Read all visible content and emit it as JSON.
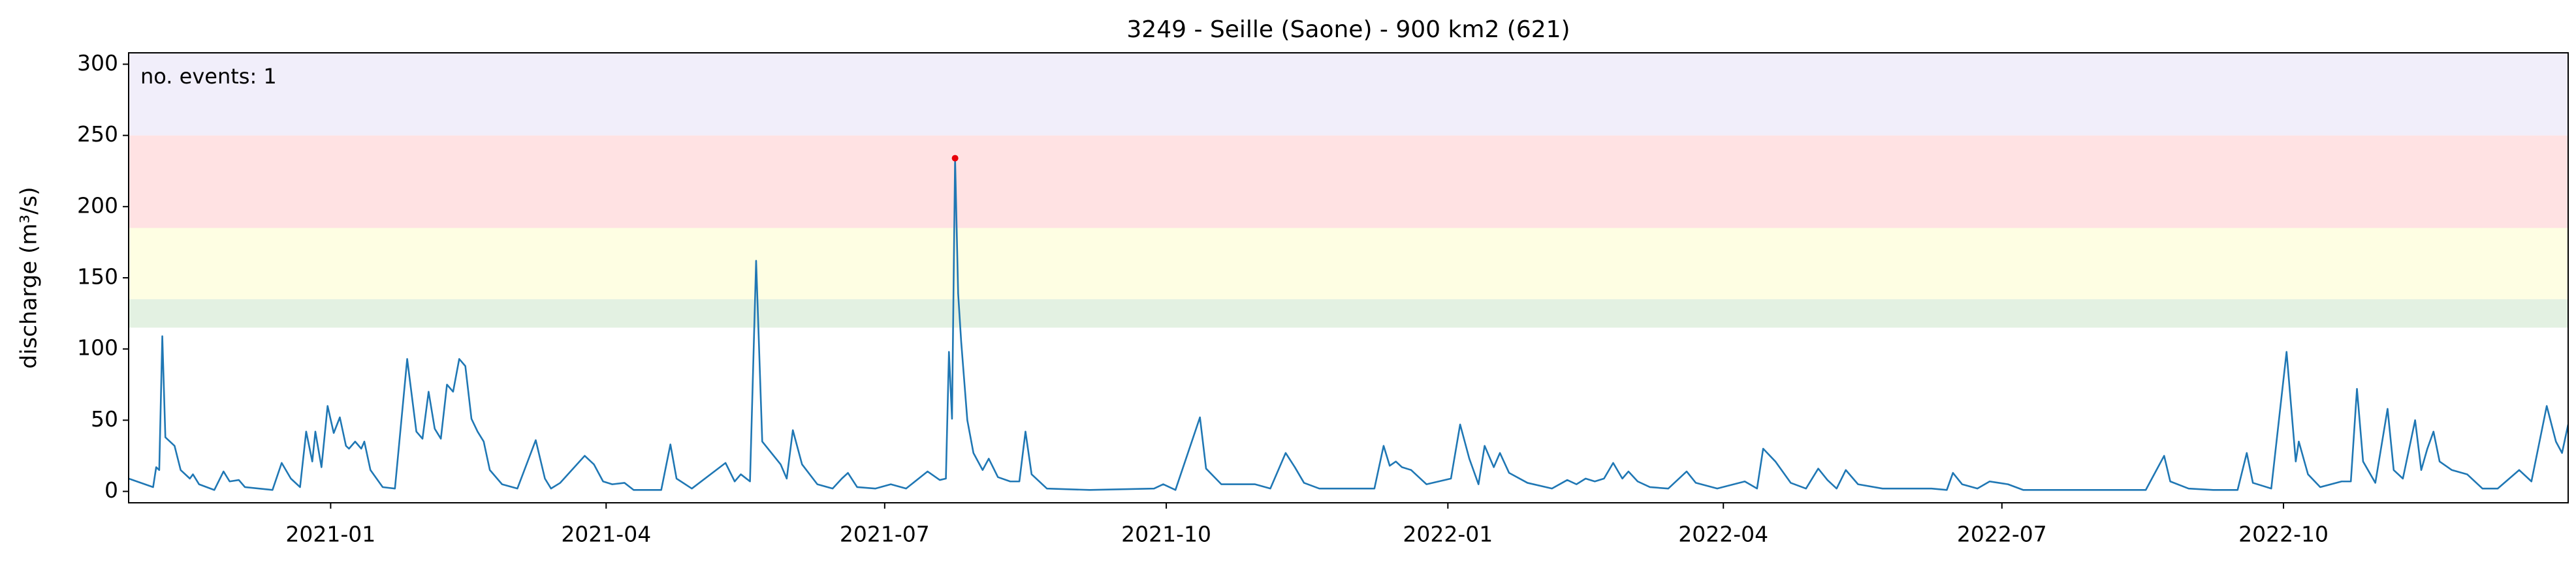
{
  "chart_data": {
    "type": "line",
    "title": "3249 - Seille (Saone) - 900 km2 (621)",
    "ylabel": "discharge (m³/s)",
    "annotation": "no. events: 1",
    "annotation_color": "#e8000b",
    "xlim": [
      -66,
      731
    ],
    "ylim": [
      -8,
      308
    ],
    "yticks": [
      0,
      50,
      100,
      150,
      200,
      250,
      300
    ],
    "xticks": [
      {
        "value": 0,
        "label": "2021-01"
      },
      {
        "value": 90,
        "label": "2021-04"
      },
      {
        "value": 181,
        "label": "2021-07"
      },
      {
        "value": 273,
        "label": "2021-10"
      },
      {
        "value": 365,
        "label": "2022-01"
      },
      {
        "value": 455,
        "label": "2022-04"
      },
      {
        "value": 546,
        "label": "2022-07"
      },
      {
        "value": 638,
        "label": "2022-10"
      }
    ],
    "bands": [
      {
        "from": 115,
        "to": 135,
        "color": "#e3f1e2"
      },
      {
        "from": 135,
        "to": 185,
        "color": "#fefee3"
      },
      {
        "from": 185,
        "to": 250,
        "color": "#ffe2e3"
      },
      {
        "from": 250,
        "to": 308,
        "color": "#f1eefa"
      }
    ],
    "series": [
      {
        "color": "#1f77b4",
        "x": [
          -66,
          -58,
          -57,
          -56,
          -55,
          -54,
          -51,
          -49,
          -46,
          -45,
          -43,
          -38,
          -35,
          -33,
          -30,
          -28,
          -19,
          -16,
          -13,
          -10,
          -8,
          -6,
          -5,
          -3,
          -1,
          1,
          3,
          5,
          6,
          8,
          10,
          11,
          13,
          17,
          21,
          25,
          28,
          30,
          32,
          34,
          36,
          38,
          40,
          42,
          44,
          46,
          48,
          50,
          52,
          56,
          61,
          67,
          70,
          72,
          75,
          83,
          86,
          89,
          92,
          96,
          99,
          108,
          111,
          113,
          118,
          129,
          132,
          134,
          137,
          139,
          141,
          144,
          147,
          149,
          151,
          154,
          159,
          164,
          167,
          169,
          172,
          178,
          183,
          188,
          195,
          199,
          201,
          202,
          203,
          204,
          205,
          206,
          208,
          210,
          213,
          215,
          218,
          222,
          225,
          227,
          229,
          234,
          248,
          269,
          272,
          276,
          284,
          286,
          291,
          302,
          307,
          312,
          315,
          318,
          323,
          341,
          344,
          346,
          348,
          350,
          353,
          358,
          366,
          369,
          372,
          375,
          377,
          380,
          382,
          385,
          391,
          399,
          404,
          407,
          410,
          413,
          416,
          419,
          422,
          424,
          427,
          431,
          437,
          443,
          446,
          453,
          462,
          466,
          468,
          472,
          477,
          482,
          486,
          489,
          492,
          495,
          499,
          507,
          523,
          528,
          530,
          533,
          538,
          542,
          545,
          548,
          553,
          593,
          599,
          601,
          607,
          615,
          623,
          626,
          628,
          634,
          639,
          642,
          643,
          646,
          650,
          657,
          660,
          662,
          664,
          668,
          672,
          674,
          677,
          681,
          683,
          685,
          687,
          689,
          693,
          698,
          703,
          708,
          715,
          719,
          724,
          727,
          729,
          731
        ],
        "values": [
          9,
          3,
          17,
          15,
          109,
          38,
          32,
          15,
          9,
          12,
          5,
          1,
          14,
          7,
          8,
          3,
          1,
          20,
          9,
          3,
          42,
          21,
          42,
          17,
          60,
          41,
          52,
          32,
          30,
          35,
          30,
          35,
          15,
          3,
          2,
          93,
          42,
          37,
          70,
          44,
          37,
          75,
          70,
          93,
          88,
          51,
          42,
          35,
          15,
          5,
          2,
          36,
          9,
          2,
          6,
          25,
          19,
          7,
          5,
          6,
          1,
          1,
          33,
          9,
          2,
          20,
          7,
          12,
          7,
          162,
          35,
          27,
          19,
          9,
          43,
          19,
          5,
          2,
          9,
          13,
          3,
          2,
          5,
          2,
          14,
          8,
          9,
          98,
          51,
          234,
          139,
          105,
          50,
          27,
          15,
          23,
          10,
          7,
          7,
          42,
          12,
          2,
          1,
          2,
          5,
          1,
          52,
          16,
          5,
          5,
          2,
          27,
          17,
          6,
          2,
          2,
          32,
          18,
          21,
          17,
          15,
          5,
          9,
          47,
          23,
          5,
          32,
          17,
          27,
          13,
          6,
          2,
          8,
          5,
          9,
          7,
          9,
          20,
          9,
          14,
          7,
          3,
          2,
          14,
          6,
          2,
          7,
          2,
          30,
          21,
          6,
          2,
          16,
          8,
          2,
          15,
          5,
          2,
          2,
          1,
          13,
          5,
          2,
          7,
          6,
          5,
          1,
          1,
          25,
          7,
          2,
          1,
          1,
          27,
          6,
          2,
          98,
          21,
          35,
          12,
          3,
          7,
          7,
          72,
          21,
          6,
          58,
          15,
          9,
          50,
          15,
          30,
          42,
          21,
          15,
          12,
          2,
          2,
          15,
          7,
          60,
          35,
          27,
          47
        ]
      }
    ],
    "events": {
      "color": "#e8000b",
      "x": [
        204
      ],
      "values": [
        234
      ]
    }
  }
}
